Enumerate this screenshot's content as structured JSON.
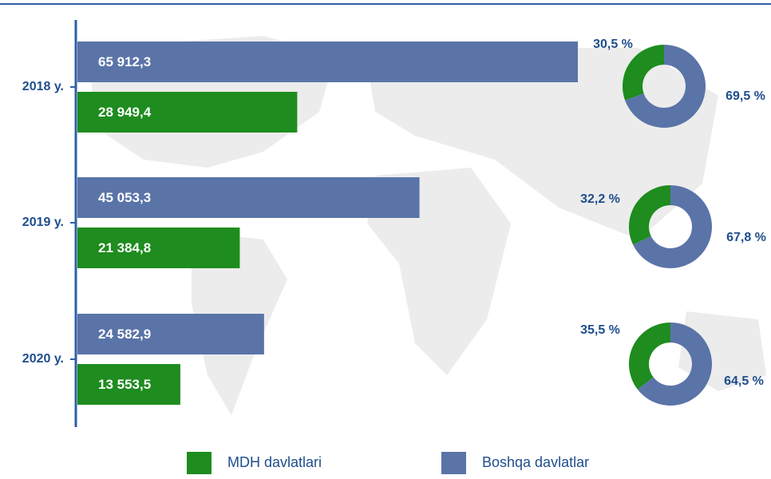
{
  "chart_data": [
    {
      "type": "bar",
      "categories": [
        "2018 y.",
        "2019 y.",
        "2020 y."
      ],
      "series": [
        {
          "name": "MDH davlatlari",
          "color": "#1e8c1e",
          "values": [
            28949.4,
            21384.8,
            13553.5
          ],
          "value_labels": [
            "28 949,4",
            "21 384,8",
            "13 553,5"
          ]
        },
        {
          "name": "Boshqa davlatlar",
          "color": "#5a74a8",
          "values": [
            65912.3,
            45053.3,
            24582.9
          ],
          "value_labels": [
            "65 912,3",
            "45 053,3",
            "24 582,9"
          ]
        }
      ]
    },
    {
      "type": "donut",
      "values": [
        30.5,
        69.5
      ],
      "value_labels": [
        "30,5 %",
        "69,5 %"
      ],
      "colors": [
        "#1e8c1e",
        "#5a74a8"
      ]
    },
    {
      "type": "donut",
      "values": [
        32.2,
        67.8
      ],
      "value_labels": [
        "32,2 %",
        "67,8 %"
      ],
      "colors": [
        "#1e8c1e",
        "#5a74a8"
      ]
    },
    {
      "type": "donut",
      "values": [
        35.5,
        64.5
      ],
      "value_labels": [
        "35,5 %",
        "64,5 %"
      ],
      "colors": [
        "#1e8c1e",
        "#5a74a8"
      ]
    }
  ]
}
